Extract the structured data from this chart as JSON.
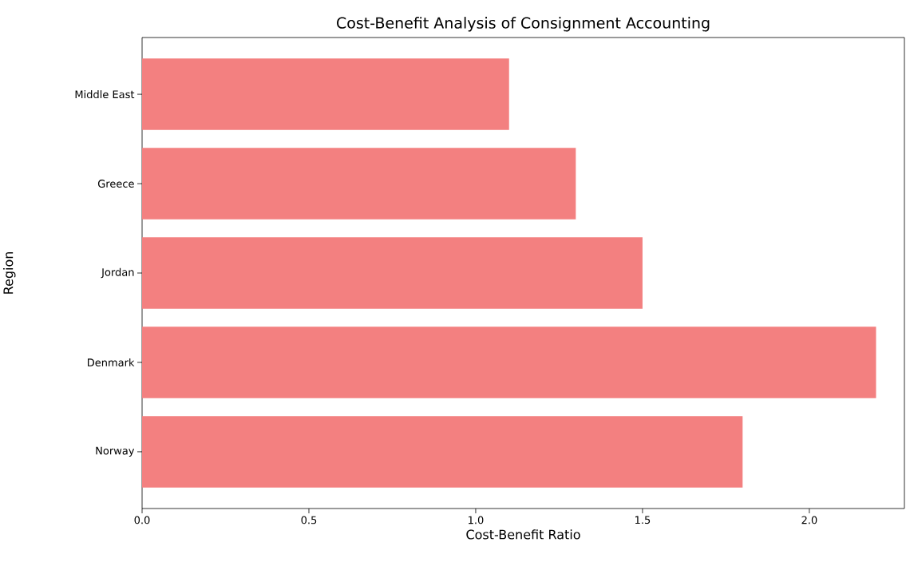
{
  "chart_data": {
    "type": "bar",
    "orientation": "horizontal",
    "title": "Cost-Benefit Analysis of Consignment Accounting",
    "xlabel": "Cost-Benefit Ratio",
    "ylabel": "Region",
    "categories": [
      "Middle East",
      "Greece",
      "Jordan",
      "Denmark",
      "Norway"
    ],
    "values": [
      1.1,
      1.3,
      1.5,
      2.2,
      1.8
    ],
    "color": "#f38080",
    "xlim": [
      0,
      2.285
    ],
    "xticks": [
      {
        "value": 0,
        "label": "0.0"
      },
      {
        "value": 0.5,
        "label": "0.5"
      },
      {
        "value": 1,
        "label": "1.0"
      },
      {
        "value": 1.5,
        "label": "1.5"
      },
      {
        "value": 2,
        "label": "2.0"
      }
    ]
  }
}
